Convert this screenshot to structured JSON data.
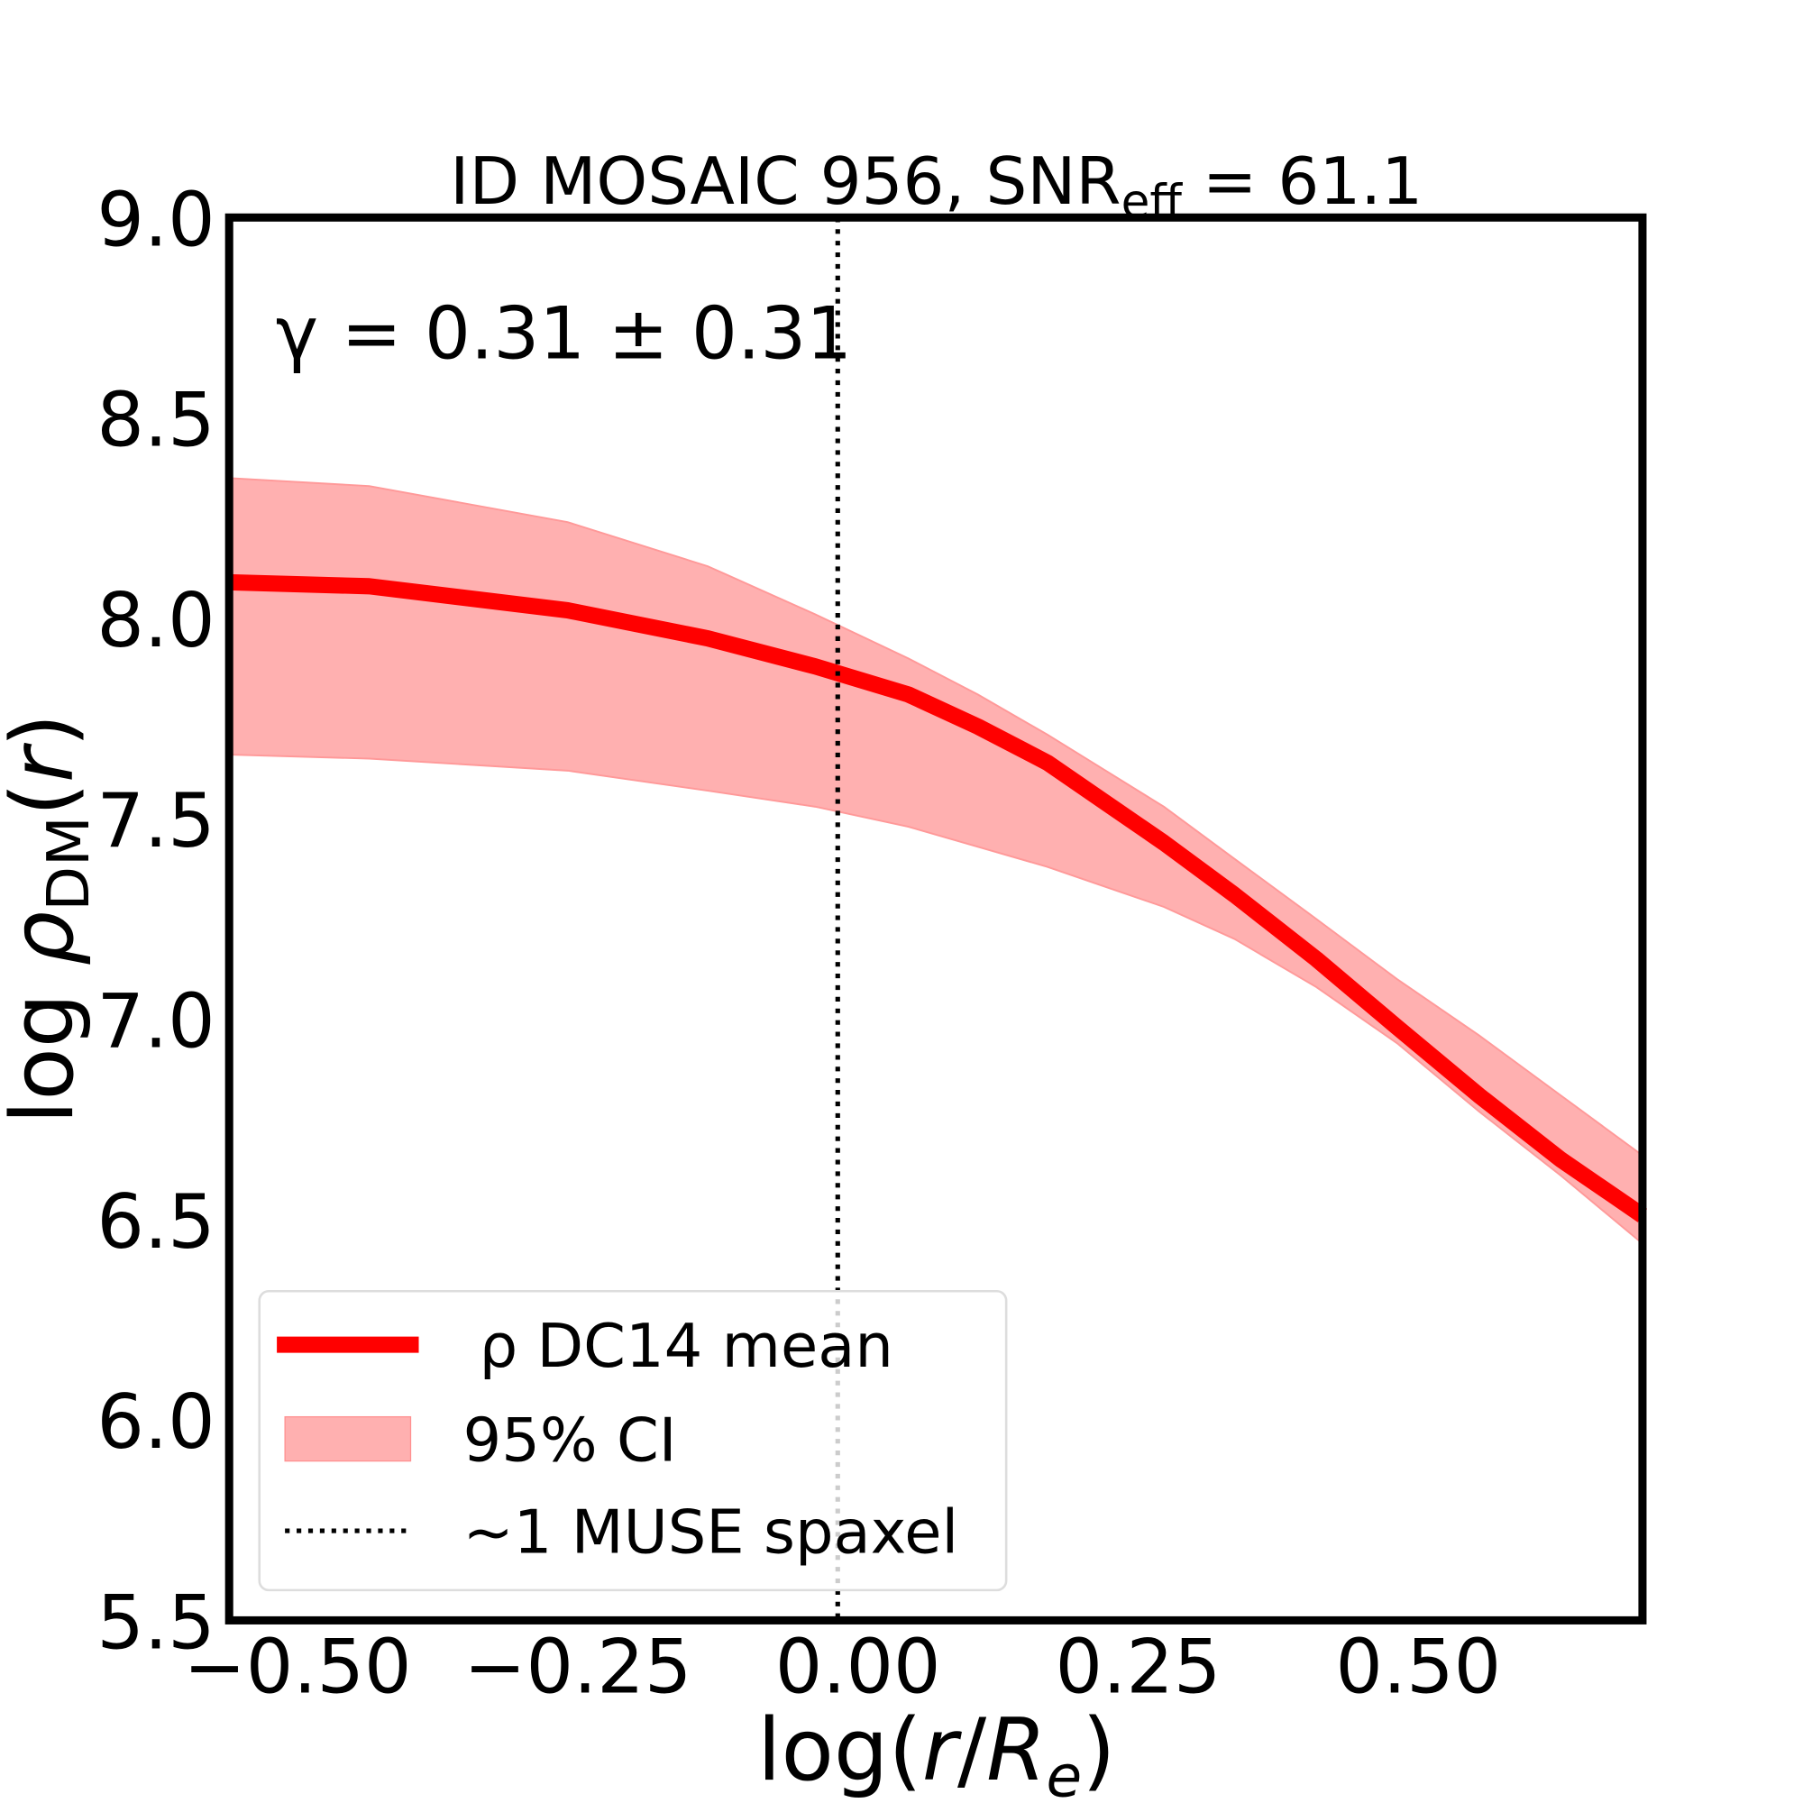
{
  "chart_data": {
    "type": "line",
    "title": "ID MOSAIC 956, SNR",
    "title_sub": "eff",
    "title_suffix": " = 61.1",
    "annotation": "γ = 0.31 ± 0.31",
    "xlabel": "log(r/R_e)",
    "ylabel": "log ρ_DM(r)",
    "xlim": [
      -0.561,
      0.7
    ],
    "ylim": [
      5.5,
      9.0
    ],
    "xticks": [
      -0.5,
      -0.25,
      0.0,
      0.25,
      0.5
    ],
    "xtick_labels": [
      "−0.50",
      "−0.25",
      "0.00",
      "0.25",
      "0.50"
    ],
    "yticks": [
      5.5,
      6.0,
      6.5,
      7.0,
      7.5,
      8.0,
      8.5,
      9.0
    ],
    "ytick_labels": [
      "5.5",
      "6.0",
      "6.5",
      "7.0",
      "7.5",
      "8.0",
      "8.5",
      "9.0"
    ],
    "grid": false,
    "legend_placement": "lower-left",
    "x": [
      -0.561,
      -0.436,
      -0.259,
      -0.134,
      -0.038,
      0.045,
      0.107,
      0.169,
      0.221,
      0.273,
      0.336,
      0.409,
      0.481,
      0.554,
      0.627,
      0.7
    ],
    "series": [
      {
        "name": "ρ DC14 mean",
        "color": "#ff0000",
        "values": [
          8.09,
          8.08,
          8.02,
          7.95,
          7.88,
          7.81,
          7.73,
          7.64,
          7.54,
          7.44,
          7.31,
          7.15,
          6.98,
          6.81,
          6.65,
          6.51
        ]
      },
      {
        "name": "95% CI",
        "color": "#ffb0b0",
        "upper": [
          8.35,
          8.33,
          8.24,
          8.13,
          8.01,
          7.9,
          7.81,
          7.71,
          7.62,
          7.53,
          7.4,
          7.25,
          7.1,
          6.96,
          6.81,
          6.66
        ],
        "lower": [
          7.66,
          7.65,
          7.62,
          7.57,
          7.53,
          7.48,
          7.43,
          7.38,
          7.33,
          7.28,
          7.2,
          7.08,
          6.94,
          6.77,
          6.61,
          6.44
        ]
      },
      {
        "name": "~1 MUSE spaxel",
        "color": "#000000",
        "vline_x": -0.018
      }
    ]
  }
}
